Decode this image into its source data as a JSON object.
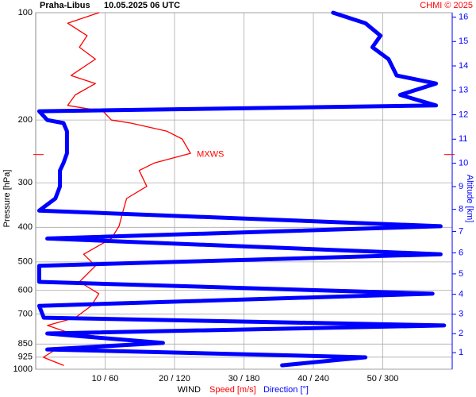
{
  "chart_data": {
    "type": "profile",
    "title": "Praha-Libus",
    "subtitle": "10.05.2025 06 UTC",
    "credit": "CHMI © 2025",
    "y_label": "Pressure [hPa]",
    "y2_label": "Altitude [km]",
    "x_label": "WIND",
    "x_label_speed": "Speed [m/s]",
    "x_label_direction": "Direction [°]",
    "pressure": [
      100,
      107,
      116,
      125,
      135,
      150,
      158,
      170,
      182,
      189,
      200,
      204,
      215,
      226,
      248,
      264,
      277,
      307,
      332,
      359,
      397,
      430,
      476,
      513,
      569,
      614,
      664,
      717,
      754,
      794,
      844,
      880,
      926,
      975
    ],
    "series": [
      {
        "name": "Speed [m/s]",
        "color": "#ff0000",
        "axis": "x",
        "values": [
          9.1,
          4.6,
          7.4,
          6.3,
          8.6,
          5.1,
          8.6,
          5.7,
          4.6,
          9.7,
          10.9,
          13.7,
          18.9,
          21.1,
          22.3,
          17.1,
          14.9,
          16,
          13.1,
          12.6,
          12,
          10.9,
          6.9,
          8.6,
          6.3,
          9.1,
          8,
          5.7,
          1.7,
          5.1,
          18.3,
          2.9,
          1.1,
          4
        ]
      },
      {
        "name": "Direction [°]",
        "color": "#0000ff",
        "axis": "x2",
        "values": [
          257,
          285,
          298,
          291,
          305,
          312,
          346,
          315,
          346,
          3,
          10,
          24,
          27,
          27,
          27,
          24,
          21,
          21,
          17,
          3,
          350,
          10,
          350,
          3,
          3,
          343,
          3,
          7,
          353,
          10,
          110,
          10,
          285,
          213
        ]
      }
    ],
    "annotation": {
      "label": "MXWS",
      "pressure": 250
    },
    "xlim": [
      0,
      60
    ],
    "x2lim": [
      0,
      360
    ],
    "xticks": [
      {
        "value": 10,
        "label": "10 / 60"
      },
      {
        "value": 20,
        "label": "20 / 120"
      },
      {
        "value": 30,
        "label": "30 / 180"
      },
      {
        "value": 40,
        "label": "40 / 240"
      },
      {
        "value": 50,
        "label": "50 / 300"
      }
    ],
    "ylim": [
      100,
      1000
    ],
    "log_y": true,
    "yticks": [
      100,
      200,
      300,
      400,
      500,
      600,
      700,
      850,
      925,
      1000
    ],
    "y2ticks": [
      1,
      2,
      3,
      4,
      5,
      6,
      7,
      8,
      9,
      10,
      11,
      12,
      13,
      14,
      15,
      16
    ],
    "grid": true
  }
}
